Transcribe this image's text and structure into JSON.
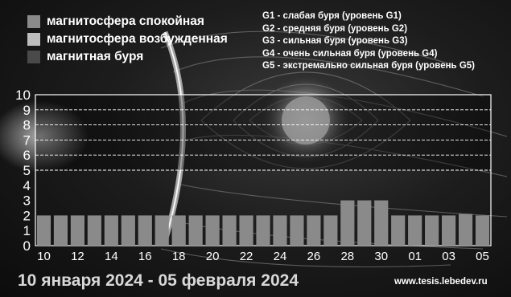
{
  "legend": {
    "items": [
      {
        "label": "магнитосфера спокойная",
        "color": "#8a8a8a"
      },
      {
        "label": "магнитосфера возбужденная",
        "color": "#bdbdbd"
      },
      {
        "label": "магнитная буря",
        "color": "#4a4a4a"
      }
    ]
  },
  "g_levels": [
    "G1 - слабая буря (уровень G1)",
    "G2 - средняя буря (уровень G2)",
    "G3 - сильная буря (уровень G3)",
    "G4 - очень сильная буря (уровень G4)",
    "G5 - экстремально сильная буря (уровень G5)"
  ],
  "footer": {
    "date_range": "10 января 2024 - 05 февраля 2024",
    "site": "www.tesis.lebedev.ru"
  },
  "chart_data": {
    "type": "bar",
    "categories": [
      "10",
      "11",
      "12",
      "13",
      "14",
      "15",
      "16",
      "17",
      "18",
      "19",
      "20",
      "21",
      "22",
      "23",
      "24",
      "25",
      "26",
      "27",
      "28",
      "29",
      "30",
      "31",
      "01",
      "02",
      "03",
      "04",
      "05"
    ],
    "x_tick_labels": [
      "10",
      "12",
      "14",
      "16",
      "18",
      "20",
      "22",
      "24",
      "26",
      "28",
      "30",
      "01",
      "03",
      "05"
    ],
    "values": [
      2,
      2,
      2,
      2,
      2,
      2,
      2,
      2,
      2,
      2,
      2,
      2,
      2,
      2,
      2,
      2,
      2,
      2,
      3,
      3,
      3,
      2,
      2,
      2,
      2,
      2.1,
      2
    ],
    "ylim": [
      0,
      10
    ],
    "y_ticks": [
      0,
      1,
      2,
      3,
      4,
      5,
      6,
      7,
      8,
      9,
      10
    ],
    "storm_threshold_lines": [
      5,
      6,
      7,
      8,
      9
    ],
    "bar_color": "#8a8a8a",
    "title": "",
    "xlabel": "",
    "ylabel": ""
  }
}
